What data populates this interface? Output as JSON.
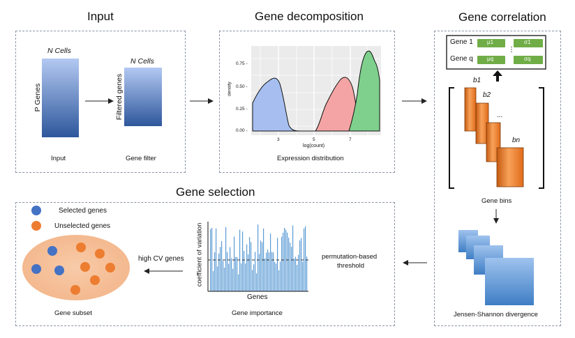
{
  "panels": {
    "input": {
      "title": "Input",
      "n_cells_1": "N Cells",
      "p_genes": "P Genes",
      "n_cells_2": "N Cells",
      "filtered_genes": "Filtered  genes",
      "caption_input": "Input",
      "caption_filter": "Gene filter"
    },
    "decomposition": {
      "title": "Gene decomposition",
      "caption": "Expression distribution",
      "chart": {
        "ylabel": "density",
        "xlabel": "log(count)",
        "yticks": [
          "0.00 -",
          "0.25 -",
          "0.50 -",
          "0.75 -"
        ],
        "xticks": [
          "3",
          "5",
          "7"
        ]
      }
    },
    "correlation": {
      "title": "Gene correlation",
      "table": {
        "row1_label": "Gene 1",
        "rowq_label": "Gene q",
        "mu1": "μ1",
        "sigma1": "σ1",
        "muq": "μq",
        "sigmaq": "σq",
        "ellipsis": "⋮"
      },
      "bins": {
        "b1": "b1",
        "b2": "b2",
        "dots": "...",
        "bn": "bn"
      },
      "caption_bins": "Gene bins",
      "caption_js": "Jensen-Shannon divergence"
    },
    "selection": {
      "title": "Gene selection",
      "legend_selected": "Selected genes",
      "legend_unselected": "Unselected genes",
      "caption_subset": "Gene subset",
      "arrow_label": "high CV genes",
      "importance_ylabel": "coefficient of variation",
      "importance_xlabel": "Genes",
      "caption_importance": "Gene importance",
      "threshold_label_1": "permutation-based",
      "threshold_label_2": "threshold"
    }
  },
  "colors": {
    "blue_top": "#a9c2ee",
    "blue_bottom": "#2d5597",
    "orange": "#ed7d31",
    "orange_light": "#f4b183",
    "green": "#70ad47",
    "density_blue": "#a6bff0",
    "density_red": "#f4a4a4",
    "density_green": "#7fd08c",
    "bar_blue": "#5b9bd5",
    "dot_blue": "#4472c4"
  },
  "icons": [
    "arrow-right-icon",
    "arrow-left-icon",
    "arrow-down-icon",
    "arrow-up-icon"
  ]
}
